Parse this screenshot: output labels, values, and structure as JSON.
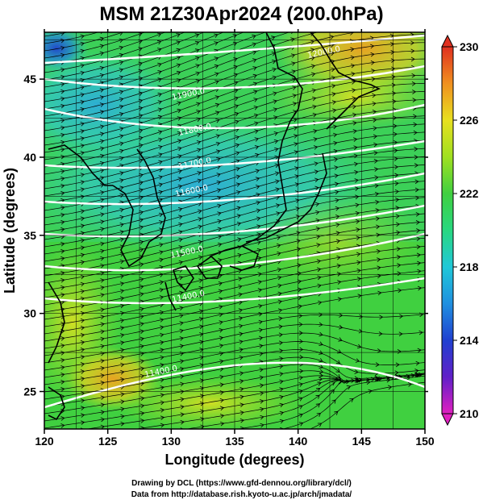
{
  "title": "MSM 21Z30Apr2024 (200.0hPa)",
  "x_axis": {
    "label": "Longitude (degrees)",
    "ticks": [
      "120",
      "125",
      "130",
      "135",
      "140",
      "145",
      "150"
    ]
  },
  "y_axis": {
    "label": "Latitude  (degrees)",
    "ticks": [
      "25",
      "30",
      "35",
      "40",
      "45"
    ]
  },
  "colorbar": {
    "ticks": [
      "210",
      "214",
      "218",
      "222",
      "226",
      "230"
    ],
    "min": 210,
    "max": 230
  },
  "contour_labels": [
    "12000.0",
    "11900.0",
    "11800.0",
    "11700.0",
    "11600.0",
    "11500.0",
    "11400.0"
  ],
  "footer": {
    "line1": "Drawing by DCL (https://www.gfd-dennou.org/library/dcl/)",
    "line2": "Data from http://database.rish.kyoto-u.ac.jp/arch/jmadata/"
  },
  "colors": {
    "colormap": [
      "#e020c0",
      "#2020c0",
      "#2090e0",
      "#20d0d0",
      "#30d860",
      "#40d040",
      "#80e030",
      "#d0e020",
      "#f0c020",
      "#f08020",
      "#e03020"
    ]
  }
}
